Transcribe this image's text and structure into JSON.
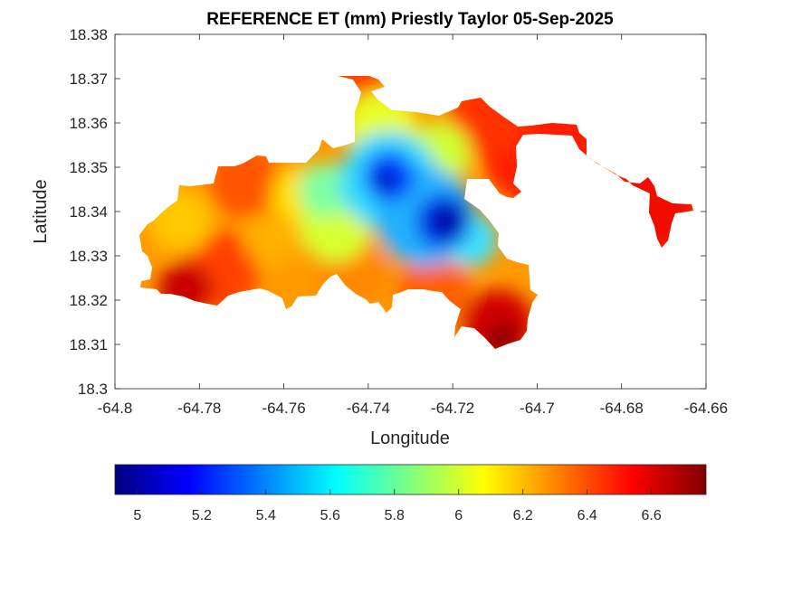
{
  "chart_data": {
    "type": "heatmap",
    "title": "REFERENCE ET (mm) Priestly Taylor 05-Sep-2025",
    "xlabel": "Longitude",
    "ylabel": "Latitude",
    "xlim": [
      -64.8,
      -64.66
    ],
    "ylim": [
      18.3,
      18.38
    ],
    "x_ticks": [
      "-64.8",
      "-64.78",
      "-64.76",
      "-64.74",
      "-64.72",
      "-64.7",
      "-64.68",
      "-64.66"
    ],
    "y_ticks": [
      "18.3",
      "18.31",
      "18.32",
      "18.33",
      "18.34",
      "18.35",
      "18.36",
      "18.37",
      "18.38"
    ],
    "colorbar": {
      "orientation": "horizontal",
      "placement": "bottom",
      "colormap": "jet",
      "range": [
        4.93,
        6.77
      ],
      "ticks": [
        "5",
        "5.2",
        "5.4",
        "5.6",
        "5.8",
        "6",
        "6.2",
        "6.4",
        "6.6"
      ]
    },
    "value_field": {
      "min": 4.93,
      "max": 6.77,
      "minimum_location": {
        "lon": -64.72,
        "lat": 18.337
      },
      "maximum_location": {
        "lon": -64.712,
        "lat": 18.311
      },
      "features": [
        {
          "lon": -64.725,
          "lat": 18.339,
          "value": 4.95
        },
        {
          "lon": -64.735,
          "lat": 18.346,
          "value": 5.05
        },
        {
          "lon": -64.73,
          "lat": 18.349,
          "value": 5.2
        },
        {
          "lon": -64.742,
          "lat": 18.345,
          "value": 5.6
        },
        {
          "lon": -64.745,
          "lat": 18.338,
          "value": 5.9
        },
        {
          "lon": -64.74,
          "lat": 18.362,
          "value": 6.0
        },
        {
          "lon": -64.725,
          "lat": 18.357,
          "value": 6.1
        },
        {
          "lon": -64.785,
          "lat": 18.338,
          "value": 6.15
        },
        {
          "lon": -64.77,
          "lat": 18.345,
          "value": 6.35
        },
        {
          "lon": -64.76,
          "lat": 18.335,
          "value": 6.1
        },
        {
          "lon": -64.73,
          "lat": 18.326,
          "value": 6.3
        },
        {
          "lon": -64.715,
          "lat": 18.362,
          "value": 6.5
        },
        {
          "lon": -64.69,
          "lat": 18.36,
          "value": 6.55
        },
        {
          "lon": -64.672,
          "lat": 18.338,
          "value": 6.55
        },
        {
          "lon": -64.78,
          "lat": 18.319,
          "value": 6.65
        },
        {
          "lon": -64.712,
          "lat": 18.311,
          "value": 6.75
        },
        {
          "lon": -64.705,
          "lat": 18.32,
          "value": 6.5
        },
        {
          "lon": -64.712,
          "lat": 18.333,
          "value": 5.9
        },
        {
          "lon": -64.79,
          "lat": 18.323,
          "value": 6.5
        }
      ]
    }
  }
}
